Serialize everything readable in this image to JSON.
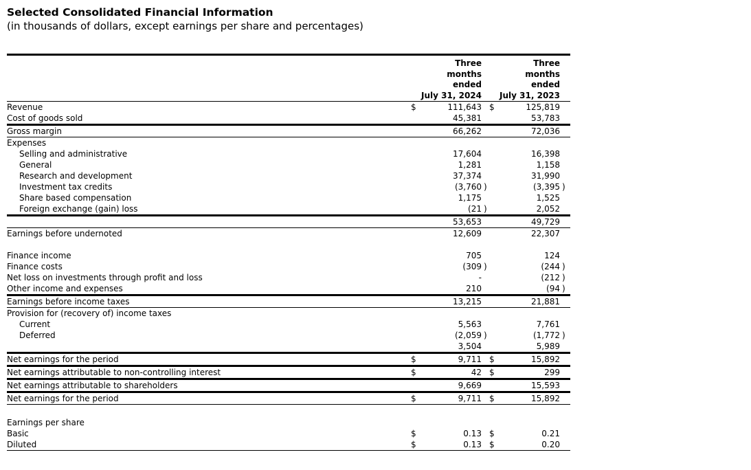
{
  "page": {
    "title": "Selected Consolidated Financial Information",
    "subtitle": "(in thousands of dollars, except earnings per share and percentages)"
  },
  "table": {
    "col_headers": [
      "Three\nmonths\nended\nJuly 31, 2024",
      "Three\nmonths\nended\nJuly 31, 2023"
    ],
    "currency_symbol": "$",
    "rows": [
      {
        "label": "Revenue",
        "d1": "$",
        "v1": "111,643",
        "d2": "$",
        "v2": "125,819"
      },
      {
        "label": "Cost of goods sold",
        "v1": "45,381",
        "v2": "53,783",
        "border": "thick"
      },
      {
        "label": "Gross margin",
        "v1": "66,262",
        "v2": "72,036",
        "border": "thin"
      },
      {
        "label": "Expenses"
      },
      {
        "label": "Selling and administrative",
        "indent": 1,
        "v1": "17,604",
        "v2": "16,398"
      },
      {
        "label": "General",
        "indent": 1,
        "v1": "1,281",
        "v2": "1,158"
      },
      {
        "label": "Research and development",
        "indent": 1,
        "v1": "37,374",
        "v2": "31,990"
      },
      {
        "label": "Investment tax credits",
        "indent": 1,
        "v1": "(3,760 )",
        "v2": "(3,395 )"
      },
      {
        "label": "Share based compensation",
        "indent": 1,
        "v1": "1,175",
        "v2": "1,525"
      },
      {
        "label": "Foreign exchange (gain) loss",
        "indent": 1,
        "v1": "(21 )",
        "v2": "2,052",
        "border": "thick"
      },
      {
        "label": "",
        "v1": "53,653",
        "v2": "49,729",
        "border": "thin"
      },
      {
        "label": "Earnings before undernoted",
        "v1": "12,609",
        "v2": "22,307"
      },
      {
        "spacer": 16
      },
      {
        "label": "Finance income",
        "v1": "705",
        "v2": "124"
      },
      {
        "label": "Finance costs",
        "v1": "(309 )",
        "v2": "(244 )"
      },
      {
        "label": "Net loss on investments through profit and loss",
        "v1": "-",
        "v2": "(212 )"
      },
      {
        "label": "Other income and expenses",
        "v1": "210",
        "v2": "(94 )",
        "border": "thick"
      },
      {
        "label": "Earnings before income taxes",
        "v1": "13,215",
        "v2": "21,881",
        "border": "thin"
      },
      {
        "label": "Provision for (recovery of) income taxes"
      },
      {
        "label": "Current",
        "indent": 1,
        "v1": "5,563",
        "v2": "7,761"
      },
      {
        "label": "Deferred",
        "indent": 1,
        "v1": "(2,059 )",
        "v2": "(1,772 )"
      },
      {
        "label": "",
        "v1": "3,504",
        "v2": "5,989",
        "border": "thick"
      },
      {
        "label": "Net earnings for the period",
        "d1": "$",
        "v1": "9,711",
        "d2": "$",
        "v2": "15,892",
        "border": "thick"
      },
      {
        "label": "Net earnings attributable to non-controlling interest",
        "d1": "$",
        "v1": "42",
        "d2": "$",
        "v2": "299",
        "border": "thick"
      },
      {
        "label": "Net earnings attributable to shareholders",
        "v1": "9,669",
        "v2": "15,593",
        "border": "thick"
      },
      {
        "label": "Net earnings for the period",
        "d1": "$",
        "v1": "9,711",
        "d2": "$",
        "v2": "15,892",
        "border": "thin"
      },
      {
        "spacer": 18
      },
      {
        "label": "Earnings per share"
      },
      {
        "label": "Basic",
        "d1": "$",
        "v1": "0.13",
        "d2": "$",
        "v2": "0.21"
      },
      {
        "label": "Diluted",
        "d1": "$",
        "v1": "0.13",
        "d2": "$",
        "v2": "0.20",
        "border": "thin"
      }
    ]
  }
}
